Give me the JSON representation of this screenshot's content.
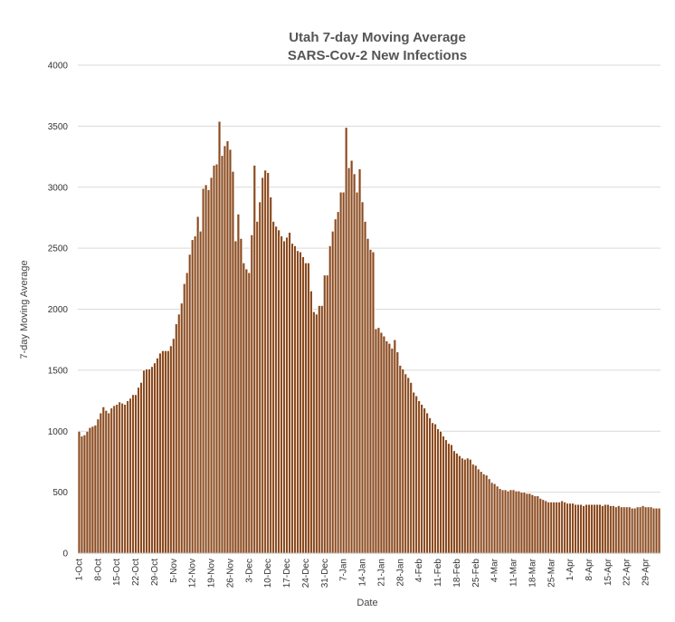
{
  "chart_data": {
    "type": "bar",
    "title": "Utah 7-day Moving Average",
    "subtitle": "SARS-Cov-2 New Infections",
    "xlabel": "Date",
    "ylabel": "7-day Moving Average",
    "ylim": [
      0,
      4000
    ],
    "yticks": [
      0,
      500,
      1000,
      1500,
      2000,
      2500,
      3000,
      3500,
      4000
    ],
    "grid": true,
    "legend": "none",
    "bar_color": "#8B4A1E",
    "bar_edge_color": "#ffffff",
    "xtick_labels": [
      "1-Oct",
      "8-Oct",
      "15-Oct",
      "22-Oct",
      "29-Oct",
      "5-Nov",
      "12-Nov",
      "19-Nov",
      "26-Nov",
      "3-Dec",
      "10-Dec",
      "17-Dec",
      "24-Dec",
      "31-Dec",
      "7-Jan",
      "14-Jan",
      "21-Jan",
      "28-Jan",
      "4-Feb",
      "11-Feb",
      "18-Feb",
      "25-Feb",
      "4-Mar",
      "11-Mar",
      "18-Mar",
      "25-Mar",
      "1-Apr",
      "8-Apr",
      "15-Apr",
      "22-Apr",
      "29-Apr"
    ],
    "xtick_every": 7,
    "values": [
      1000,
      960,
      970,
      1000,
      1030,
      1040,
      1050,
      1100,
      1150,
      1200,
      1170,
      1150,
      1190,
      1210,
      1220,
      1240,
      1230,
      1220,
      1250,
      1270,
      1300,
      1300,
      1360,
      1400,
      1500,
      1510,
      1510,
      1530,
      1560,
      1600,
      1640,
      1660,
      1660,
      1660,
      1700,
      1760,
      1880,
      1960,
      2050,
      2210,
      2300,
      2450,
      2570,
      2600,
      2760,
      2640,
      2990,
      3020,
      2980,
      3080,
      3180,
      3190,
      3540,
      3260,
      3340,
      3380,
      3310,
      3130,
      2560,
      2780,
      2580,
      2380,
      2330,
      2300,
      2610,
      3180,
      2720,
      2880,
      3080,
      3140,
      3120,
      2920,
      2720,
      2680,
      2650,
      2600,
      2560,
      2590,
      2630,
      2540,
      2520,
      2480,
      2470,
      2430,
      2380,
      2380,
      2150,
      1980,
      1960,
      2030,
      2030,
      2280,
      2280,
      2520,
      2640,
      2740,
      2800,
      2960,
      2960,
      3490,
      3160,
      3220,
      3110,
      2960,
      3150,
      2880,
      2720,
      2580,
      2490,
      2470,
      1840,
      1850,
      1810,
      1780,
      1740,
      1720,
      1680,
      1750,
      1650,
      1540,
      1510,
      1470,
      1440,
      1400,
      1320,
      1290,
      1250,
      1220,
      1190,
      1150,
      1110,
      1070,
      1060,
      1020,
      1000,
      960,
      930,
      900,
      890,
      840,
      820,
      800,
      780,
      770,
      780,
      770,
      730,
      720,
      690,
      670,
      650,
      640,
      610,
      580,
      570,
      550,
      530,
      520,
      520,
      510,
      520,
      520,
      510,
      510,
      500,
      500,
      490,
      490,
      480,
      470,
      470,
      450,
      440,
      430,
      420,
      420,
      420,
      420,
      420,
      430,
      420,
      410,
      410,
      410,
      400,
      400,
      400,
      390,
      400,
      400,
      400,
      400,
      400,
      400,
      390,
      400,
      400,
      390,
      390,
      380,
      390,
      380,
      380,
      380,
      380,
      370,
      370,
      380,
      380,
      390,
      380,
      380,
      380,
      370,
      370,
      370
    ]
  }
}
